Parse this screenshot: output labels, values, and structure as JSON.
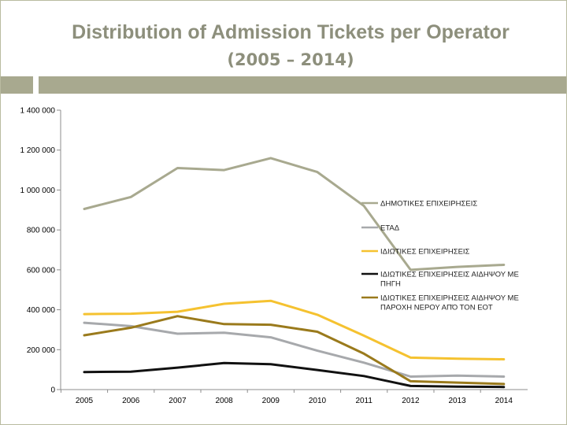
{
  "header": {
    "title": "Distribution of Admission Tickets per Operator",
    "subtitle": "(2005 – 2014)"
  },
  "colors": {
    "band": "#a8a98f",
    "title": "#8d8f7c",
    "axis": "#8c8c8c"
  },
  "chart_data": {
    "type": "line",
    "title": "Distribution of Admission Tickets per Operator (2005 – 2014)",
    "xlabel": "",
    "ylabel": "",
    "categories": [
      "2005",
      "2006",
      "2007",
      "2008",
      "2009",
      "2010",
      "2011",
      "2012",
      "2013",
      "2014"
    ],
    "ylim": [
      0,
      1400000
    ],
    "yticks": [
      0,
      200000,
      400000,
      600000,
      800000,
      1000000,
      1200000,
      1400000
    ],
    "ytick_labels": [
      "0",
      "200 000",
      "400 000",
      "600 000",
      "800 000",
      "1 000 000",
      "1 200 000",
      "1 400 000"
    ],
    "grid": false,
    "legend_position": "right",
    "series": [
      {
        "name": "ΔΗΜΟΤΙΚΕΣ ΕΠΙΧΕΙΡΗΣΕΙΣ",
        "color": "#a8a98f",
        "values": [
          905000,
          965000,
          1110000,
          1100000,
          1160000,
          1090000,
          920000,
          600000,
          615000,
          625000
        ]
      },
      {
        "name": "ΕΤΑΔ",
        "color": "#a7a9ac",
        "values": [
          335000,
          318000,
          280000,
          285000,
          262000,
          195000,
          135000,
          65000,
          70000,
          65000
        ]
      },
      {
        "name": "ΙΔΙΩΤΙΚΕΣ ΕΠΙΧΕΙΡΗΣΕΙΣ",
        "color": "#f5c230",
        "values": [
          378000,
          380000,
          390000,
          430000,
          445000,
          375000,
          270000,
          160000,
          155000,
          152000
        ]
      },
      {
        "name": "ΙΔΙΩΤΙΚΕΣ ΕΠΙΧΕΙΡΗΣΕΙΣ ΑΙΔΗΨΟΥ ΜΕ ΠΗΓΗ",
        "name_lines": [
          "ΙΔΙΩΤΙΚΕΣ ΕΠΙΧΕΙΡΗΣΕΙΣ ΑΙΔΗΨΟΥ ΜΕ",
          "ΠΗΓΗ"
        ],
        "color": "#111111",
        "values": [
          88000,
          90000,
          110000,
          133000,
          127000,
          98000,
          68000,
          18000,
          15000,
          13000
        ]
      },
      {
        "name": "ΙΔΙΩΤΙΚΕΣ ΕΠΙΧΕΙΡΗΣΕΙΣ ΑΙΔΗΨΟΥ ΜΕ ΠΑΡΟΧΗ ΝΕΡΟΥ ΑΠΌ ΤΟΝ ΕΟΤ",
        "name_lines": [
          "ΙΔΙΩΤΙΚΕΣ ΕΠΙΧΕΙΡΗΣΕΙΣ ΑΙΔΗΨΟΥ ΜΕ",
          "ΠΑΡΟΧΗ ΝΕΡΟΥ ΑΠΌ ΤΟΝ ΕΟΤ"
        ],
        "color": "#9a7a1c",
        "values": [
          272000,
          310000,
          368000,
          328000,
          325000,
          290000,
          180000,
          42000,
          35000,
          28000
        ]
      }
    ]
  }
}
